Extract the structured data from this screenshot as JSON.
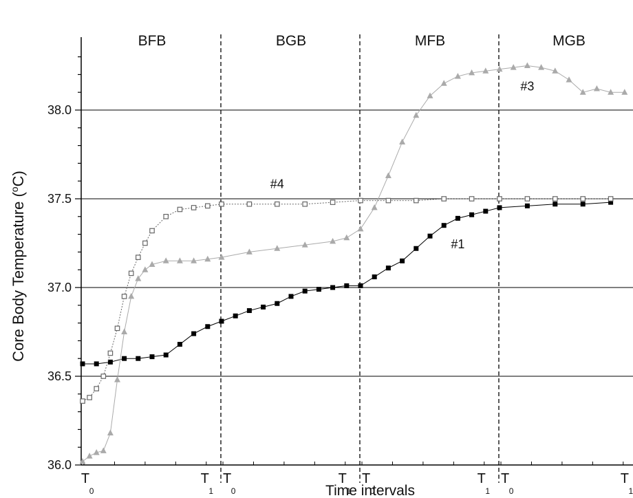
{
  "chart_data": {
    "type": "scatter",
    "xlabel": "Time intervals",
    "ylabel": "Core Body Temperature (°C)",
    "ylabel_parts": {
      "pre": "Core Body Temperature (",
      "sup": "o",
      "post": "C)"
    },
    "ylim": [
      36.0,
      38.4
    ],
    "xlim": [
      0,
      4.0
    ],
    "yticks": [
      "36.0",
      "36.5",
      "37.0",
      "37.5",
      "38.0"
    ],
    "ytick_values": [
      36.0,
      36.5,
      37.0,
      37.5,
      38.0
    ],
    "grid_lines_y": [
      36.5,
      37.0,
      37.5,
      38.0
    ],
    "phases": [
      {
        "label": "BFB",
        "start": 0,
        "end": 1
      },
      {
        "label": "BGB",
        "start": 1,
        "end": 2
      },
      {
        "label": "MFB",
        "start": 2,
        "end": 3
      },
      {
        "label": "MGB",
        "start": 3,
        "end": 4
      }
    ],
    "interval_markers": [
      {
        "main": "T",
        "sub": "0",
        "x": 0.02
      },
      {
        "main": "T",
        "sub": "1",
        "x": 0.88
      },
      {
        "main": "T",
        "sub": "0",
        "x": 1.04
      },
      {
        "main": "T",
        "sub": "1",
        "x": 1.87
      },
      {
        "main": "T",
        "sub": "0",
        "x": 2.04
      },
      {
        "main": "T",
        "sub": "1",
        "x": 2.87
      },
      {
        "main": "T",
        "sub": "0",
        "x": 3.04
      },
      {
        "main": "T",
        "sub": "1",
        "x": 3.9
      }
    ],
    "annotations": [
      {
        "text": "#4",
        "x": 1.4,
        "y": 37.56
      },
      {
        "text": "#3",
        "x": 3.2,
        "y": 38.11
      },
      {
        "text": "#1",
        "x": 2.7,
        "y": 37.22
      }
    ],
    "series": [
      {
        "name": "#1",
        "marker": "filled-square",
        "color": "#000000",
        "x": [
          0.0,
          0.1,
          0.2,
          0.3,
          0.4,
          0.5,
          0.6,
          0.7,
          0.8,
          0.9,
          1.0,
          1.1,
          1.2,
          1.3,
          1.4,
          1.5,
          1.6,
          1.7,
          1.8,
          1.9,
          2.0,
          2.1,
          2.2,
          2.3,
          2.4,
          2.5,
          2.6,
          2.7,
          2.8,
          2.9,
          3.0,
          3.2,
          3.4,
          3.6,
          3.8,
          4.0
        ],
        "y": [
          36.57,
          36.57,
          36.58,
          36.6,
          36.6,
          36.61,
          36.62,
          36.68,
          36.74,
          36.78,
          36.81,
          36.84,
          36.87,
          36.89,
          36.91,
          36.95,
          36.98,
          36.99,
          37.0,
          37.01,
          37.01,
          37.06,
          37.11,
          37.15,
          37.22,
          37.29,
          37.35,
          37.39,
          37.41,
          37.43,
          37.45,
          37.46,
          37.47,
          37.47,
          37.48,
          37.48
        ]
      },
      {
        "name": "#3",
        "marker": "filled-triangle",
        "color": "#aaaaaa",
        "x": [
          0.0,
          0.05,
          0.1,
          0.15,
          0.2,
          0.25,
          0.3,
          0.35,
          0.4,
          0.45,
          0.5,
          0.6,
          0.7,
          0.8,
          0.9,
          1.0,
          1.2,
          1.4,
          1.6,
          1.8,
          1.9,
          2.0,
          2.1,
          2.2,
          2.3,
          2.4,
          2.5,
          2.6,
          2.7,
          2.8,
          2.9,
          3.0,
          3.1,
          3.2,
          3.3,
          3.4,
          3.5,
          3.6,
          3.7,
          3.8,
          3.9,
          4.0
        ],
        "y": [
          36.02,
          36.05,
          36.07,
          36.08,
          36.18,
          36.48,
          36.75,
          36.95,
          37.05,
          37.1,
          37.13,
          37.15,
          37.15,
          37.15,
          37.16,
          37.17,
          37.2,
          37.22,
          37.24,
          37.26,
          37.28,
          37.33,
          37.45,
          37.63,
          37.82,
          37.97,
          38.08,
          38.15,
          38.19,
          38.21,
          38.22,
          38.23,
          38.24,
          38.25,
          38.24,
          38.22,
          38.17,
          38.1,
          38.12,
          38.1,
          38.1,
          38.08
        ]
      },
      {
        "name": "#4",
        "marker": "open-square",
        "color": "#666666",
        "x": [
          0.0,
          0.05,
          0.1,
          0.15,
          0.2,
          0.25,
          0.3,
          0.35,
          0.4,
          0.45,
          0.5,
          0.6,
          0.7,
          0.8,
          0.9,
          1.0,
          1.2,
          1.4,
          1.6,
          1.8,
          2.0,
          2.2,
          2.4,
          2.6,
          2.8,
          3.0,
          3.2,
          3.4,
          3.6,
          3.8,
          4.0
        ],
        "y": [
          36.36,
          36.38,
          36.43,
          36.5,
          36.63,
          36.77,
          36.95,
          37.08,
          37.17,
          37.25,
          37.32,
          37.4,
          37.44,
          37.45,
          37.46,
          37.47,
          37.47,
          37.47,
          37.47,
          37.48,
          37.49,
          37.49,
          37.49,
          37.5,
          37.5,
          37.5,
          37.5,
          37.5,
          37.5,
          37.5,
          37.5
        ]
      }
    ]
  }
}
